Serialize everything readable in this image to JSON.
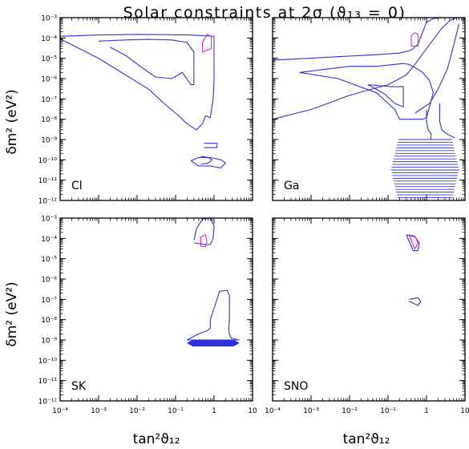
{
  "figure": {
    "title": "Solar constraints at 2σ (ϑ₁₃ = 0)",
    "ylabel": "δm² (eV²)",
    "xlabel": "tan²ϑ₁₂"
  },
  "colors": {
    "contour": "#3333dd",
    "best_fit": "#dd22cc",
    "frame": "#000000"
  },
  "chart_data": [
    {
      "type": "contour",
      "panel": "Cl",
      "x_scale": "log",
      "y_scale": "log",
      "xlim": [
        0.0001,
        10
      ],
      "ylim": [
        1e-12,
        0.001
      ],
      "x_ticks": [
        "10⁻⁴",
        "10⁻³",
        "10⁻²",
        "10⁻¹",
        "1",
        "10"
      ],
      "y_ticks": [
        "10⁻³",
        "10⁻⁴",
        "10⁻⁵",
        "10⁻⁶",
        "10⁻⁷",
        "10⁻⁸",
        "10⁻⁹",
        "10⁻¹⁰",
        "10⁻¹¹",
        "10⁻¹²"
      ],
      "series": [
        {
          "role": "contour",
          "x": [
            0.0001,
            0.001,
            0.01,
            0.05,
            0.2,
            0.5,
            1,
            1,
            0.95,
            0.8,
            0.6,
            0.5,
            0.35,
            0.2,
            0.1,
            0.05,
            0.02,
            0.005,
            0.001,
            0.0001
          ],
          "y": [
            0.00012,
            0.00014,
            0.00015,
            0.000145,
            0.00014,
            0.00013,
            0.00012,
            1e-06,
            1e-07,
            1.2e-08,
            1.5e-08,
            6e-09,
            3e-09,
            6e-09,
            2e-08,
            6e-08,
            3e-07,
            1.5e-06,
            1e-05,
            9e-05
          ]
        },
        {
          "role": "contour",
          "x": [
            0.001,
            0.005,
            0.02,
            0.08,
            0.2,
            0.3,
            0.3,
            0.25,
            0.15,
            0.08,
            0.03,
            0.012,
            0.005,
            0.002
          ],
          "y": [
            7e-05,
            8e-05,
            8.5e-05,
            8e-05,
            6e-05,
            2e-05,
            5e-07,
            5e-07,
            2e-06,
            1e-06,
            1.2e-06,
            4e-06,
            1.4e-05,
            3.5e-05
          ]
        },
        {
          "role": "contour",
          "x": [
            0.45,
            0.7,
            0.9,
            0.7,
            0.45
          ],
          "y": [
            1.5e-10,
            1.3e-10,
            1e-10,
            7e-11,
            6e-11
          ]
        },
        {
          "role": "contour",
          "x": [
            0.25,
            0.4,
            0.5,
            0.8,
            1.5,
            2,
            1.5,
            0.8,
            0.5,
            0.4,
            0.25
          ],
          "y": [
            9e-11,
            1.3e-10,
            1.3e-10,
            1.3e-10,
            1e-10,
            7e-11,
            4e-11,
            5e-11,
            5e-11,
            5e-11,
            9e-11
          ]
        },
        {
          "role": "contour",
          "x": [
            0.55,
            1.2,
            1.2,
            0.55
          ],
          "y": [
            4e-10,
            4e-10,
            6.5e-10,
            6.5e-10
          ]
        },
        {
          "role": "best-fit",
          "x": [
            0.5,
            0.65,
            0.85,
            0.85,
            0.65,
            0.5
          ],
          "y": [
            2e-05,
            2.5e-05,
            3e-05,
            0.00012,
            0.00015,
            6e-05
          ]
        }
      ]
    },
    {
      "type": "contour",
      "panel": "Ga",
      "x_scale": "log",
      "y_scale": "log",
      "xlim": [
        0.0001,
        10
      ],
      "ylim": [
        1e-12,
        0.001
      ],
      "x_ticks": [
        "10⁻⁴",
        "10⁻³",
        "10⁻²",
        "10⁻¹",
        "1",
        "10"
      ],
      "y_ticks": [
        "10⁻³",
        "10⁻⁴",
        "10⁻⁵",
        "10⁻⁶",
        "10⁻⁷",
        "10⁻⁸",
        "10⁻⁹",
        "10⁻¹⁰",
        "10⁻¹¹",
        "10⁻¹²"
      ],
      "series": [
        {
          "role": "contour",
          "x": [
            0.0001,
            0.005,
            0.05,
            0.2,
            0.4,
            0.6,
            0.8,
            1,
            1.5,
            2.5,
            4,
            6,
            8
          ],
          "y": [
            8e-06,
            1.2e-05,
            1.5e-05,
            1.8e-05,
            2.5e-05,
            5e-05,
            0.0002,
            0.0006,
            0.0009,
            0.001,
            0.001,
            0.001,
            0.001
          ]
        },
        {
          "role": "contour",
          "x": [
            0.0001,
            0.001,
            0.01,
            0.1,
            0.3,
            0.5,
            1,
            2.5,
            4,
            6,
            8
          ],
          "y": [
            1e-08,
            3e-08,
            1.5e-07,
            5e-07,
            1.5e-06,
            5e-06,
            3e-05,
            0.0003,
            0.0007,
            0.001,
            0.001
          ]
        },
        {
          "role": "contour",
          "x": [
            0.0005,
            0.01,
            0.05,
            0.25,
            0.35,
            0.5,
            0.8,
            1.2,
            1.5,
            1,
            0.8,
            0.2,
            0.15,
            0.05,
            0.005,
            0.0005
          ],
          "y": [
            2e-06,
            4e-06,
            4e-06,
            5.5e-06,
            5e-06,
            3.5e-06,
            2e-06,
            8e-07,
            2e-07,
            1.2e-08,
            1e-08,
            1e-08,
            3e-08,
            2e-07,
            1e-06,
            2e-06
          ]
        },
        {
          "role": "contour",
          "x": [
            0.03,
            0.12,
            0.25,
            0.25,
            0.15,
            0.08,
            0.03
          ],
          "y": [
            5e-07,
            4e-07,
            4e-07,
            4e-08,
            6e-08,
            1.8e-07,
            5e-07
          ]
        },
        {
          "role": "contour",
          "x": [
            0.5,
            1.2,
            2,
            3.5,
            5,
            7
          ],
          "y": [
            2e-08,
            6e-08,
            3e-07,
            3e-06,
            4e-05,
            0.0005
          ]
        },
        {
          "role": "contour",
          "x": [
            1,
            1,
            1.1,
            1.3,
            1.3
          ],
          "y": [
            3e-08,
            8e-09,
            3e-09,
            2e-09,
            1e-09
          ]
        },
        {
          "role": "contour",
          "x": [
            2.2,
            2.2,
            2.5,
            3.5,
            5.5
          ],
          "y": [
            6e-08,
            8e-09,
            3e-09,
            1.8e-09,
            1.2e-09
          ]
        },
        {
          "role": "band",
          "x": [
            0.12,
            7
          ],
          "y": [
            1e-09,
            1e-12
          ]
        },
        {
          "role": "best-fit",
          "x": [
            0.4,
            0.6,
            0.6,
            0.5,
            0.4
          ],
          "y": [
            4e-05,
            4e-05,
            0.00015,
            0.00018,
            0.00013
          ]
        }
      ]
    },
    {
      "type": "contour",
      "panel": "SK",
      "x_scale": "log",
      "y_scale": "log",
      "xlim": [
        0.0001,
        10
      ],
      "ylim": [
        1e-12,
        0.001
      ],
      "x_ticks": [
        "10⁻⁴",
        "10⁻³",
        "10⁻²",
        "10⁻¹",
        "1",
        "10"
      ],
      "y_ticks": [
        "10⁻³",
        "10⁻⁴",
        "10⁻⁵",
        "10⁻⁶",
        "10⁻⁷",
        "10⁻⁸",
        "10⁻⁹",
        "10⁻¹⁰",
        "10⁻¹¹",
        "10⁻¹²"
      ],
      "series": [
        {
          "role": "contour",
          "x": [
            0.3,
            0.35,
            0.5,
            0.8,
            1,
            0.95,
            0.8,
            0.6,
            0.3
          ],
          "y": [
            8e-05,
            0.0003,
            0.0009,
            0.001,
            0.0004,
            0.0001,
            5e-05,
            5e-05,
            6e-05
          ]
        },
        {
          "role": "contour",
          "x": [
            0.8,
            1.4,
            2.2,
            2.5,
            2.5,
            2.4,
            2.5,
            2.8,
            4.5,
            0.2,
            0.4,
            0.7,
            0.8,
            0.8
          ],
          "y": [
            1e-08,
            2.5e-07,
            2.8e-07,
            1.5e-07,
            1e-08,
            3e-09,
            2e-09,
            1.2e-09,
            1e-09,
            1e-09,
            2e-09,
            3e-09,
            4e-09,
            1e-08
          ]
        },
        {
          "role": "band",
          "x": [
            0.2,
            4.5
          ],
          "y": [
            1e-09,
            5e-10
          ]
        },
        {
          "role": "best-fit",
          "x": [
            0.45,
            0.6,
            0.65,
            0.6,
            0.45
          ],
          "y": [
            4e-05,
            4e-05,
            7e-05,
            0.00015,
            0.00012
          ]
        }
      ]
    },
    {
      "type": "contour",
      "panel": "SNO",
      "x_scale": "log",
      "y_scale": "log",
      "xlim": [
        0.0001,
        10
      ],
      "ylim": [
        1e-12,
        0.001
      ],
      "x_ticks": [
        "10⁻⁴",
        "10⁻³",
        "10⁻²",
        "10⁻¹",
        "1",
        "10"
      ],
      "y_ticks": [
        "10⁻³",
        "10⁻⁴",
        "10⁻⁵",
        "10⁻⁶",
        "10⁻⁷",
        "10⁻⁸",
        "10⁻⁹",
        "10⁻¹⁰",
        "10⁻¹¹",
        "10⁻¹²"
      ],
      "series": [
        {
          "role": "contour",
          "x": [
            0.3,
            0.5,
            0.65,
            0.6,
            0.45,
            0.3
          ],
          "y": [
            0.00015,
            0.00012,
            6e-05,
            2.5e-05,
            2.5e-05,
            0.00015
          ]
        },
        {
          "role": "contour",
          "x": [
            0.35,
            0.6,
            0.7,
            0.6,
            0.35
          ],
          "y": [
            1e-07,
            1.2e-07,
            8e-08,
            5e-08,
            8e-08
          ]
        },
        {
          "role": "best-fit",
          "x": [
            0.35,
            0.5,
            0.6,
            0.5,
            0.35
          ],
          "y": [
            0.00015,
            0.00013,
            6e-05,
            3e-05,
            0.00015
          ]
        }
      ]
    }
  ]
}
